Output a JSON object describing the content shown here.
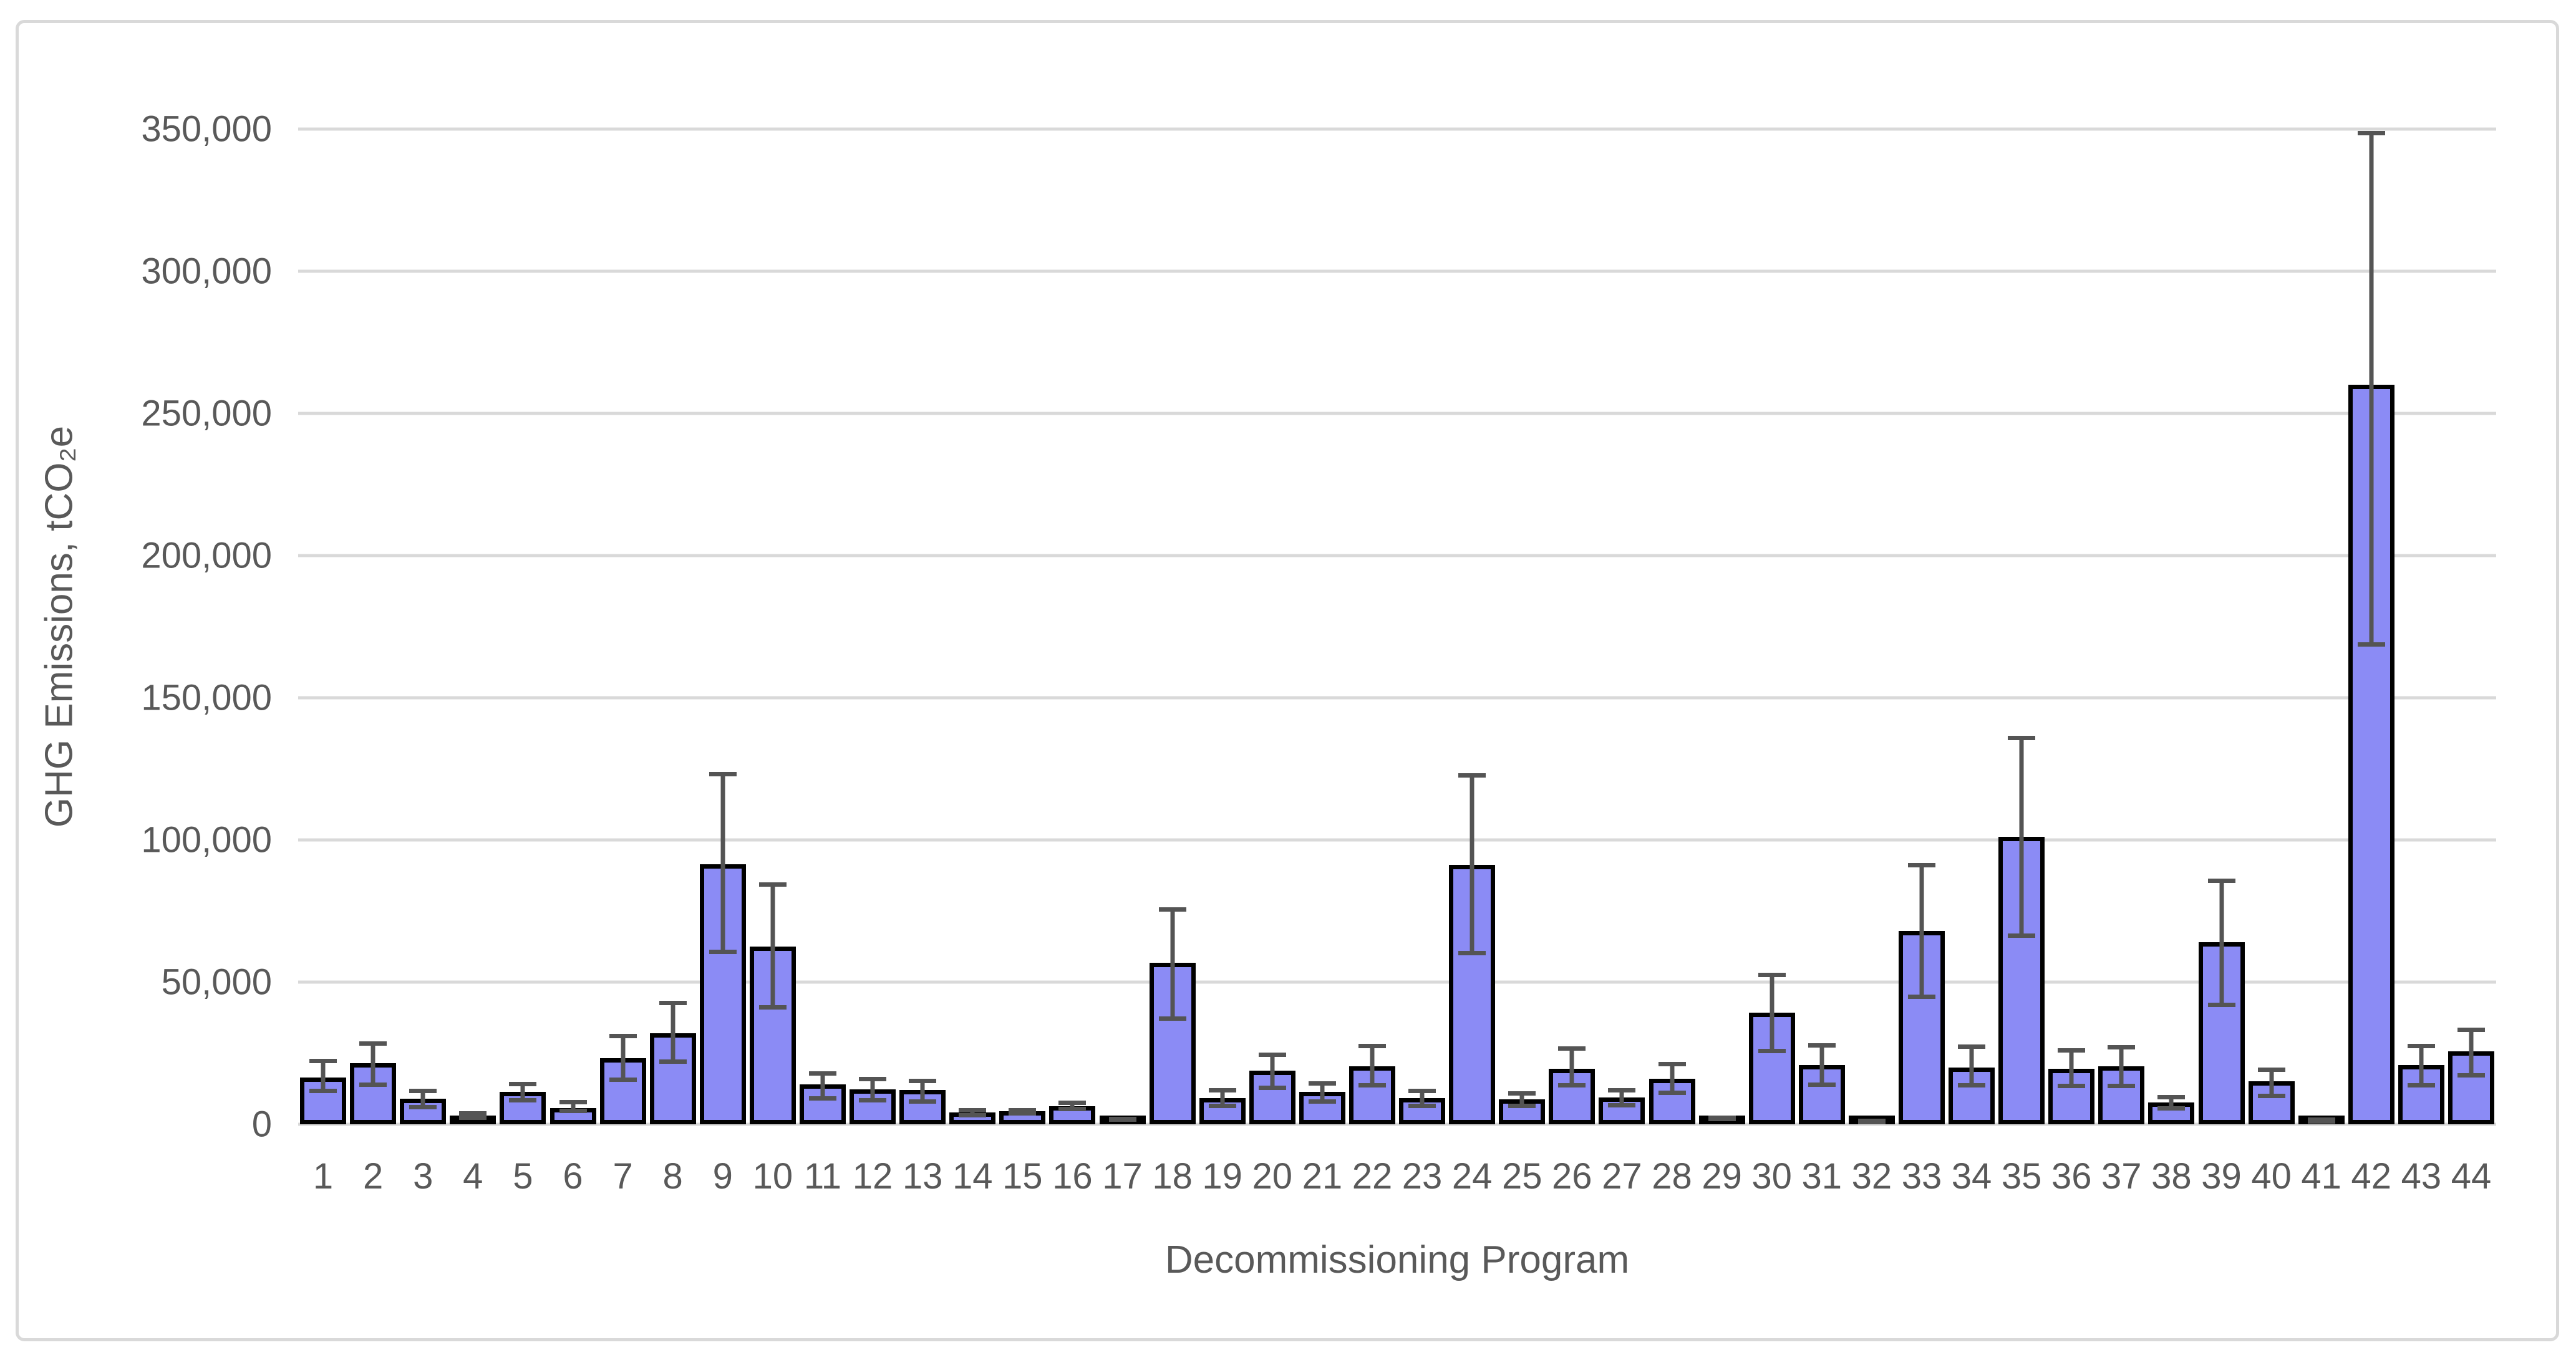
{
  "chart_data": {
    "type": "bar",
    "title": "",
    "xlabel": "Decommissioning Program",
    "ylabel": "GHG Emissions, tCO₂e",
    "categories": [
      "1",
      "2",
      "3",
      "4",
      "5",
      "6",
      "7",
      "8",
      "9",
      "10",
      "11",
      "12",
      "13",
      "14",
      "15",
      "16",
      "17",
      "18",
      "19",
      "20",
      "21",
      "22",
      "23",
      "24",
      "25",
      "26",
      "27",
      "28",
      "29",
      "30",
      "31",
      "32",
      "33",
      "34",
      "35",
      "36",
      "37",
      "38",
      "39",
      "40",
      "41",
      "42",
      "43",
      "44"
    ],
    "series": [
      {
        "name": "GHG Emissions",
        "values": [
          16500,
          21500,
          9000,
          3000,
          11300,
          5800,
          23300,
          32000,
          91500,
          62400,
          14000,
          12300,
          12000,
          4200,
          4500,
          6300,
          1600,
          56700,
          9200,
          18900,
          11300,
          20300,
          9200,
          91300,
          8800,
          19600,
          9400,
          16100,
          2000,
          39200,
          20900,
          1000,
          68000,
          19900,
          101100,
          19600,
          20300,
          7600,
          64000,
          15100,
          1300,
          260000,
          20800,
          25600
        ],
        "error_low": [
          11000,
          13200,
          5300,
          1600,
          7700,
          3900,
          15000,
          21200,
          59800,
          40300,
          8300,
          7700,
          7300,
          2500,
          3100,
          4500,
          1000,
          36400,
          5800,
          12000,
          7300,
          13000,
          5800,
          59500,
          5800,
          13000,
          6000,
          10200,
          1000,
          24900,
          13200,
          500,
          44100,
          13000,
          65600,
          12700,
          12700,
          4800,
          41300,
          9200,
          800,
          168000,
          13000,
          16400
        ],
        "error_high": [
          23000,
          29100,
          12600,
          4500,
          15000,
          8600,
          31900,
          43400,
          123800,
          85100,
          18600,
          16700,
          16100,
          5700,
          5800,
          8300,
          2500,
          76400,
          12700,
          25200,
          15100,
          28300,
          12600,
          123400,
          11700,
          27400,
          12700,
          22000,
          3100,
          53200,
          28500,
          1500,
          91900,
          28100,
          136700,
          26800,
          27800,
          10400,
          86400,
          19900,
          1800,
          349400,
          28300,
          34100
        ]
      }
    ],
    "ylim": [
      0,
      350000
    ],
    "ytick_step": 50000,
    "ytick_labels": [
      "0",
      "50,000",
      "100,000",
      "150,000",
      "200,000",
      "250,000",
      "300,000",
      "350,000"
    ],
    "grid": true,
    "legend": "none",
    "colors": {
      "bar_fill": "#8B8BF5",
      "bar_border": "#000000",
      "error_bar": "#545454",
      "gridline": "#D9D9D9",
      "text": "#595959",
      "frame_border": "#D9D9D9",
      "background": "#FFFFFF"
    }
  }
}
